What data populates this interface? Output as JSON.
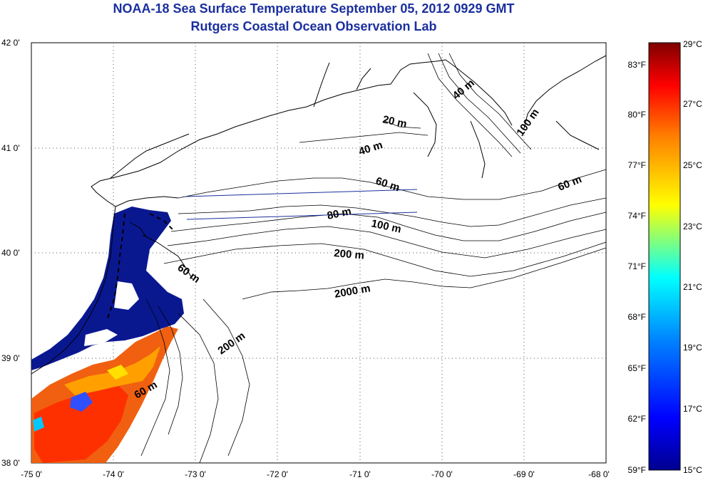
{
  "header": {
    "title": "NOAA-18 Sea Surface Temperature September 05, 2012 0929 GMT",
    "subtitle": "Rutgers Coastal Ocean Observation Lab"
  },
  "map": {
    "lon_range": [
      -75,
      -68
    ],
    "lat_range": [
      38,
      42
    ],
    "lon_ticks": [
      "-75 0'",
      "-74 0'",
      "-73 0'",
      "-72 0'",
      "-71 0'",
      "-70 0'",
      "-69 0'",
      "-68 0'"
    ],
    "lat_ticks": [
      "42 0'",
      "41 0'",
      "40 0'",
      "39 0'",
      "38 0'"
    ],
    "grid": "dotted",
    "isobath_labels": [
      {
        "text": "40 m"
      },
      {
        "text": "100 m"
      },
      {
        "text": "20 m"
      },
      {
        "text": "40 m"
      },
      {
        "text": "60 m"
      },
      {
        "text": "60 m"
      },
      {
        "text": "80 m"
      },
      {
        "text": "100 m"
      },
      {
        "text": "200 m"
      },
      {
        "text": "60 m"
      },
      {
        "text": "2000 m"
      },
      {
        "text": "200 m"
      },
      {
        "text": "60 m"
      }
    ]
  },
  "colorbar": {
    "fahrenheit_labels": [
      "83°F",
      "80°F",
      "77°F",
      "74°F",
      "71°F",
      "68°F",
      "65°F",
      "62°F",
      "59°F"
    ],
    "celsius_labels": [
      "29°C",
      "27°C",
      "25°C",
      "23°C",
      "21°C",
      "19°C",
      "17°C",
      "15°C"
    ],
    "colors": [
      "#7f0000",
      "#ff0000",
      "#ff8000",
      "#ffff00",
      "#00ffff",
      "#0080ff",
      "#0000ff",
      "#00008f"
    ]
  }
}
